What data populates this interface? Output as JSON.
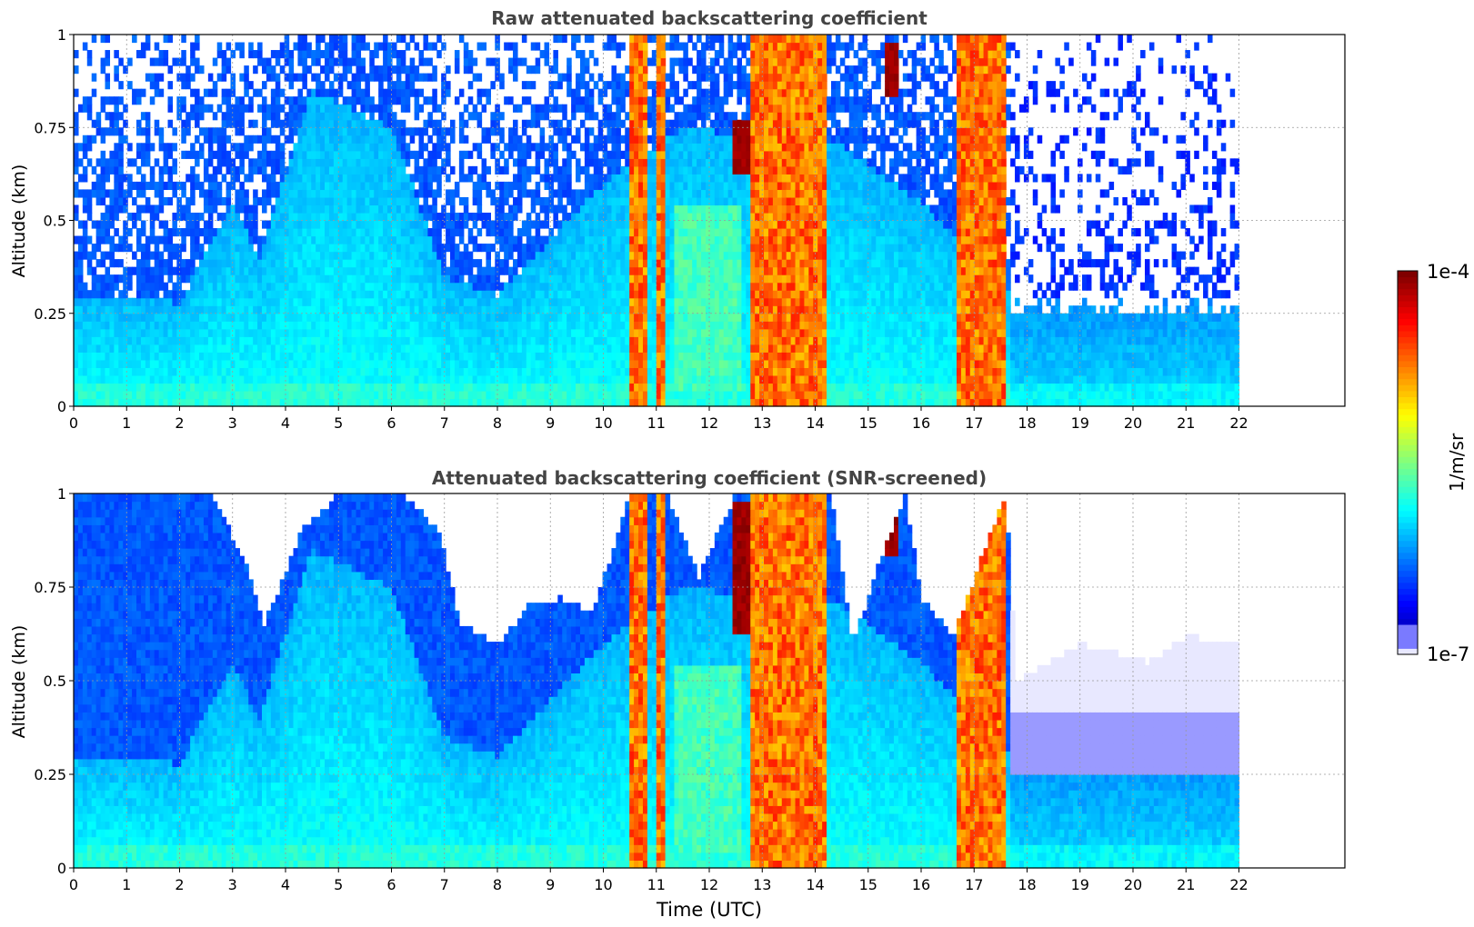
{
  "chart_data": [
    {
      "type": "heatmap",
      "title": "Raw attenuated backscattering coefficient",
      "xlabel": "",
      "ylabel": "Altitude (km)",
      "xlim": [
        0,
        24
      ],
      "ylim": [
        0,
        1
      ],
      "xticks": [
        0,
        1,
        2,
        3,
        4,
        5,
        6,
        7,
        8,
        9,
        10,
        11,
        12,
        13,
        14,
        15,
        16,
        17,
        18,
        19,
        20,
        21,
        22
      ],
      "yticks": [
        0,
        0.25,
        0.5,
        0.75,
        1
      ],
      "ytick_labels": [
        "0",
        "0.25",
        "0.5",
        "0.75",
        "1"
      ],
      "data_extent_x": [
        0,
        22
      ],
      "grid": true,
      "screened": false,
      "z_scale": "log10",
      "z_range": [
        -7,
        -4
      ],
      "features": {
        "boundary_layer": [
          {
            "x": 0,
            "top_km": 0.3
          },
          {
            "x": 2,
            "top_km": 0.28
          },
          {
            "x": 3,
            "top_km": 0.55
          },
          {
            "x": 3.5,
            "top_km": 0.4
          },
          {
            "x": 4.5,
            "top_km": 0.85
          },
          {
            "x": 6,
            "top_km": 0.75
          },
          {
            "x": 7,
            "top_km": 0.35
          },
          {
            "x": 8,
            "top_km": 0.3
          },
          {
            "x": 9,
            "top_km": 0.45
          },
          {
            "x": 10,
            "top_km": 0.6
          },
          {
            "x": 11.5,
            "top_km": 0.75
          },
          {
            "x": 14.5,
            "top_km": 0.7
          },
          {
            "x": 16,
            "top_km": 0.55
          },
          {
            "x": 17.7,
            "top_km": 0.3
          },
          {
            "x": 22,
            "top_km": 0.3
          }
        ],
        "precipitation_columns": [
          {
            "x0": 10.5,
            "x1": 10.85
          },
          {
            "x0": 11.0,
            "x1": 11.2
          },
          {
            "x0": 12.75,
            "x1": 14.2
          },
          {
            "x0": 16.65,
            "x1": 17.6
          }
        ],
        "cloud_patches": [
          {
            "x0": 12.45,
            "x1": 12.75,
            "y0": 0.62,
            "y1": 0.78
          },
          {
            "x0": 15.35,
            "x1": 15.6,
            "y0": 0.83,
            "y1": 0.97
          }
        ]
      }
    },
    {
      "type": "heatmap",
      "title": "Attenuated backscattering coefficient (SNR-screened)",
      "xlabel": "Time (UTC)",
      "ylabel": "Altitude (km)",
      "xlim": [
        0,
        24
      ],
      "ylim": [
        0,
        1
      ],
      "xticks": [
        0,
        1,
        2,
        3,
        4,
        5,
        6,
        7,
        8,
        9,
        10,
        11,
        12,
        13,
        14,
        15,
        16,
        17,
        18,
        19,
        20,
        21,
        22
      ],
      "yticks": [
        0,
        0.25,
        0.5,
        0.75,
        1
      ],
      "ytick_labels": [
        "0",
        "0.25",
        "0.5",
        "0.75",
        "1"
      ],
      "data_extent_x": [
        0,
        22
      ],
      "grid": true,
      "screened": true,
      "z_scale": "log10",
      "z_range": [
        -7,
        -4
      ],
      "features": {
        "boundary_layer": [
          {
            "x": 0,
            "top_km": 0.3
          },
          {
            "x": 2,
            "top_km": 0.28
          },
          {
            "x": 3,
            "top_km": 0.55
          },
          {
            "x": 3.5,
            "top_km": 0.4
          },
          {
            "x": 4.5,
            "top_km": 0.85
          },
          {
            "x": 6,
            "top_km": 0.75
          },
          {
            "x": 7,
            "top_km": 0.35
          },
          {
            "x": 8,
            "top_km": 0.3
          },
          {
            "x": 9,
            "top_km": 0.45
          },
          {
            "x": 10,
            "top_km": 0.6
          },
          {
            "x": 11.5,
            "top_km": 0.75
          },
          {
            "x": 14.5,
            "top_km": 0.7
          },
          {
            "x": 16,
            "top_km": 0.55
          },
          {
            "x": 17.7,
            "top_km": 0.3
          },
          {
            "x": 22,
            "top_km": 0.3
          }
        ],
        "screen_top": [
          {
            "x": 0,
            "km": 1.0
          },
          {
            "x": 2.6,
            "km": 1.0
          },
          {
            "x": 3.3,
            "km": 0.8
          },
          {
            "x": 3.6,
            "km": 0.65
          },
          {
            "x": 4.3,
            "km": 0.9
          },
          {
            "x": 5.0,
            "km": 1.0
          },
          {
            "x": 6.2,
            "km": 1.0
          },
          {
            "x": 6.9,
            "km": 0.9
          },
          {
            "x": 7.3,
            "km": 0.65
          },
          {
            "x": 8.0,
            "km": 0.6
          },
          {
            "x": 8.6,
            "km": 0.7
          },
          {
            "x": 9.2,
            "km": 0.72
          },
          {
            "x": 9.8,
            "km": 0.68
          },
          {
            "x": 10.5,
            "km": 1.0
          },
          {
            "x": 11.2,
            "km": 1.0
          },
          {
            "x": 11.8,
            "km": 0.78
          },
          {
            "x": 12.5,
            "km": 1.0
          },
          {
            "x": 14.3,
            "km": 1.0
          },
          {
            "x": 14.7,
            "km": 0.6
          },
          {
            "x": 15.3,
            "km": 0.85
          },
          {
            "x": 15.7,
            "km": 1.0
          },
          {
            "x": 16.0,
            "km": 0.72
          },
          {
            "x": 16.6,
            "km": 0.62
          },
          {
            "x": 17.6,
            "km": 1.0
          },
          {
            "x": 17.8,
            "km": 0.5
          },
          {
            "x": 19.0,
            "km": 0.6
          },
          {
            "x": 20.3,
            "km": 0.55
          },
          {
            "x": 21.0,
            "km": 0.62
          },
          {
            "x": 22,
            "km": 0.6
          }
        ],
        "precipitation_columns": [
          {
            "x0": 10.5,
            "x1": 10.85
          },
          {
            "x0": 11.0,
            "x1": 11.2
          },
          {
            "x0": 12.75,
            "x1": 14.2
          },
          {
            "x0": 16.65,
            "x1": 17.6
          }
        ],
        "cloud_patches": [
          {
            "x0": 12.45,
            "x1": 12.75,
            "y0": 0.62,
            "y1": 0.97
          },
          {
            "x0": 15.35,
            "x1": 15.6,
            "y0": 0.83,
            "y1": 0.97
          }
        ]
      }
    }
  ],
  "colorbar": {
    "label": "1/m/sr",
    "max_label": "1e-4",
    "min_label": "1e-7",
    "colormap": "jet",
    "low_color": "#e8e8ff"
  }
}
